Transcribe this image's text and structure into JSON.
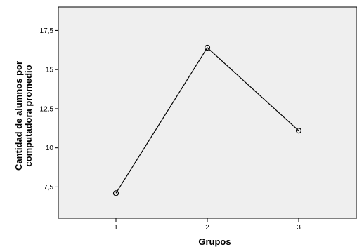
{
  "chart_data": {
    "type": "line",
    "title": "",
    "xlabel": "Grupos",
    "ylabel": [
      "Cantidad de alumnos por",
      "computadora promedio"
    ],
    "categories": [
      "1",
      "2",
      "3"
    ],
    "series": [
      {
        "values": [
          7.1,
          16.4,
          11.1
        ],
        "marker": "circle"
      }
    ],
    "ylim": [
      5.5,
      19.0
    ],
    "yticks": [
      7.5,
      10,
      12.5,
      15,
      17.5
    ],
    "ytick_labels": [
      "7,5",
      "10",
      "12,5",
      "15",
      "17,5"
    ],
    "grid": false,
    "legend": "none",
    "colors": {
      "plot_background": "#efefef",
      "line": "#000000",
      "axis": "#000000"
    }
  }
}
